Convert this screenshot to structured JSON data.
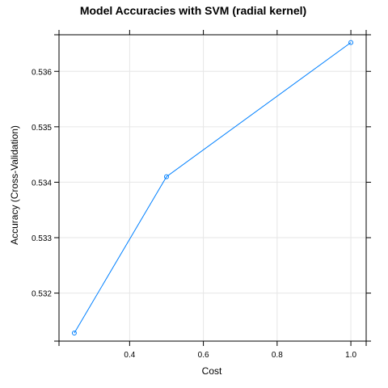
{
  "chart_data": {
    "type": "line",
    "title": "Model Accuracies with SVM (radial kernel)",
    "xlabel": "Cost",
    "ylabel": "Accuracy (Cross-Validation)",
    "xlim": [
      0.2085,
      1.0415
    ],
    "ylim": [
      0.531134,
      0.53666
    ],
    "x_ticks": [
      0.4,
      0.6,
      0.8,
      1.0
    ],
    "x_tick_labels": [
      "0.4",
      "0.6",
      "0.8",
      "1.0"
    ],
    "y_ticks": [
      0.532,
      0.533,
      0.534,
      0.535,
      0.536
    ],
    "y_tick_labels": [
      "0.532",
      "0.533",
      "0.534",
      "0.535",
      "0.536"
    ],
    "grid": true,
    "series": [
      {
        "x": [
          0.25,
          0.5,
          1.0
        ],
        "y": [
          0.53128,
          0.5341,
          0.53652
        ]
      }
    ],
    "colors": {
      "line": "#0080ff",
      "grid": "#e6e6e6",
      "frame": "#000000"
    }
  }
}
